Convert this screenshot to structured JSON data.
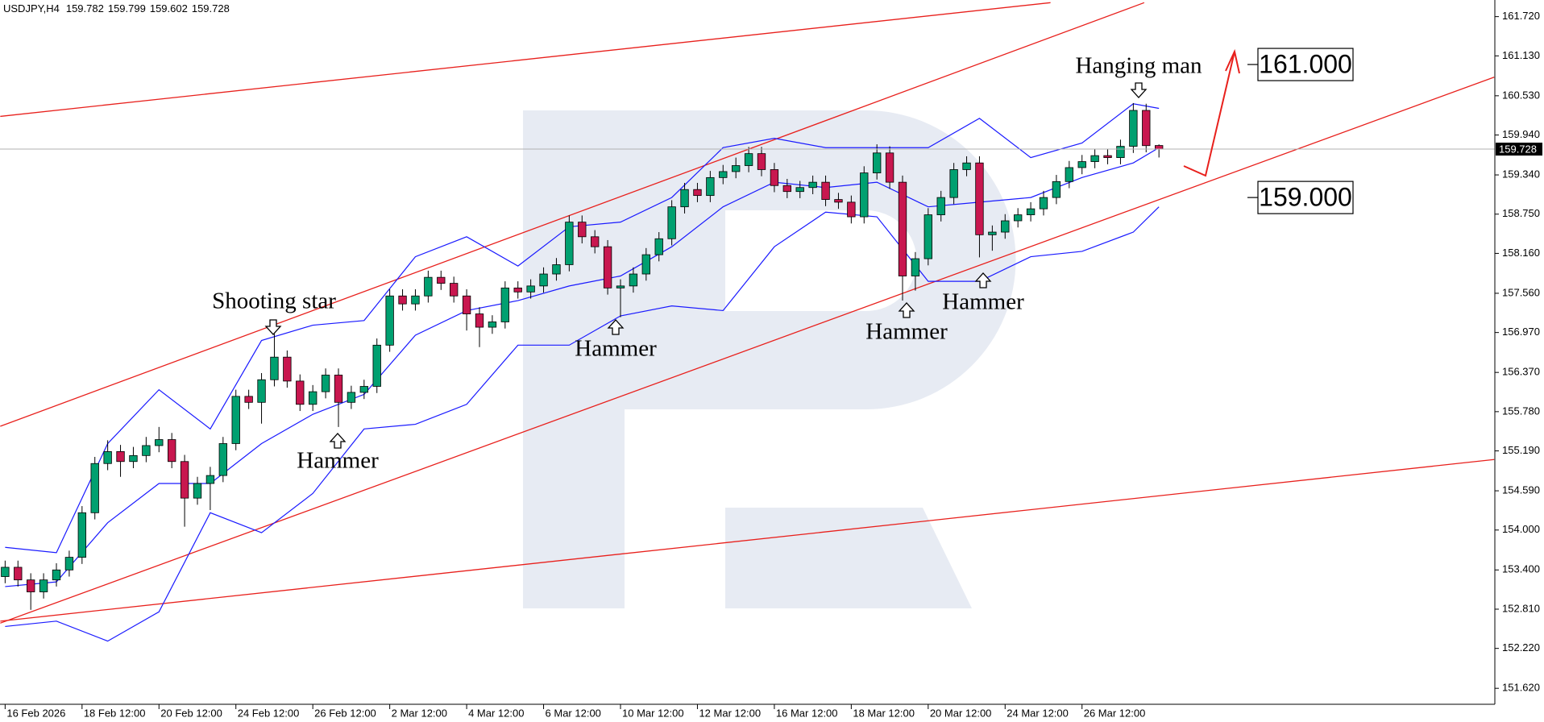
{
  "chart_data": {
    "type": "candlestick",
    "symbol": "USDJPY,H4",
    "xlim": [
      -0.4,
      116.2
    ],
    "ylim": [
      151.38,
      161.97
    ],
    "yticks": [
      {
        "value": 161.72,
        "label": "161.720"
      },
      {
        "value": 161.13,
        "label": "161.130"
      },
      {
        "value": 160.53,
        "label": "160.530"
      },
      {
        "value": 159.94,
        "label": "159.940"
      },
      {
        "value": 159.34,
        "label": "159.340"
      },
      {
        "value": 158.75,
        "label": "158.750"
      },
      {
        "value": 158.16,
        "label": "158.160"
      },
      {
        "value": 157.56,
        "label": "157.560"
      },
      {
        "value": 156.97,
        "label": "156.970"
      },
      {
        "value": 156.37,
        "label": "156.370"
      },
      {
        "value": 155.78,
        "label": "155.780"
      },
      {
        "value": 155.19,
        "label": "155.190"
      },
      {
        "value": 154.59,
        "label": "154.590"
      },
      {
        "value": 154,
        "label": "154.000"
      },
      {
        "value": 153.4,
        "label": "153.400"
      },
      {
        "value": 152.81,
        "label": "152.810"
      },
      {
        "value": 152.22,
        "label": "152.220"
      },
      {
        "value": 151.62,
        "label": "151.620"
      }
    ],
    "xticks": [
      {
        "value": 0,
        "label": "16 Feb 2026"
      },
      {
        "value": 6,
        "label": "18 Feb 12:00"
      },
      {
        "value": 12,
        "label": "20 Feb 12:00"
      },
      {
        "value": 18,
        "label": "24 Feb 12:00"
      },
      {
        "value": 24,
        "label": "26 Feb 12:00"
      },
      {
        "value": 30,
        "label": "2 Mar 12:00"
      },
      {
        "value": 36,
        "label": "4 Mar 12:00"
      },
      {
        "value": 42,
        "label": "6 Mar 12:00"
      },
      {
        "value": 48,
        "label": "10 Mar 12:00"
      },
      {
        "value": 54,
        "label": "12 Mar 12:00"
      },
      {
        "value": 60,
        "label": "16 Mar 12:00"
      },
      {
        "value": 66,
        "label": "18 Mar 12:00"
      },
      {
        "value": 72,
        "label": "20 Mar 12:00"
      },
      {
        "value": 78,
        "label": "24 Mar 12:00"
      },
      {
        "value": 84,
        "label": "26 Mar 12:00"
      }
    ],
    "up_color": "#00a070",
    "down_color": "#c8174f",
    "x": [
      0,
      1,
      2,
      3,
      4,
      5,
      6,
      7,
      8,
      9,
      10,
      11,
      12,
      13,
      14,
      15,
      16,
      17,
      18,
      19,
      20,
      21,
      22,
      23,
      24,
      25,
      26,
      27,
      28,
      29,
      30,
      31,
      32,
      33,
      34,
      35,
      36,
      37,
      38,
      39,
      40,
      41,
      42,
      43,
      44,
      45,
      46,
      47,
      48,
      49,
      50,
      51,
      52,
      53,
      54,
      55,
      56,
      57,
      58,
      59,
      60,
      61,
      62,
      63,
      64,
      65,
      66,
      67,
      68,
      69,
      70,
      71,
      72,
      73,
      74,
      75,
      76,
      77,
      78,
      79,
      80,
      81,
      82,
      83,
      84,
      85,
      86,
      87,
      88,
      89,
      90
    ],
    "open": [
      153.3,
      153.44,
      153.25,
      153.07,
      153.25,
      153.4,
      153.59,
      154.26,
      155.0,
      155.18,
      155.03,
      155.12,
      155.27,
      155.36,
      155.03,
      154.48,
      154.7,
      154.82,
      155.3,
      156.01,
      155.92,
      156.26,
      156.6,
      156.24,
      155.89,
      156.08,
      156.33,
      155.92,
      156.07,
      156.16,
      156.78,
      157.52,
      157.4,
      157.52,
      157.8,
      157.71,
      157.52,
      157.25,
      157.05,
      157.13,
      157.64,
      157.58,
      157.67,
      157.85,
      157.99,
      158.63,
      158.41,
      158.26,
      157.64,
      157.67,
      157.85,
      158.14,
      158.38,
      158.86,
      159.12,
      159.03,
      159.3,
      159.39,
      159.48,
      159.66,
      159.42,
      159.18,
      159.09,
      159.15,
      159.23,
      158.97,
      158.93,
      158.71,
      159.37,
      159.67,
      159.23,
      157.82,
      158.08,
      158.74,
      159.0,
      159.42,
      159.52,
      158.44,
      158.48,
      158.65,
      158.74,
      158.83,
      159.0,
      159.24,
      159.45,
      159.54,
      159.63,
      159.6,
      159.77,
      160.31,
      159.782
    ],
    "high": [
      153.54,
      153.54,
      153.35,
      153.35,
      153.5,
      153.69,
      154.36,
      155.1,
      155.35,
      155.28,
      155.25,
      155.4,
      155.55,
      155.46,
      155.13,
      154.8,
      154.95,
      155.4,
      156.11,
      156.11,
      156.36,
      156.95,
      156.7,
      156.34,
      156.18,
      156.43,
      156.43,
      156.17,
      156.26,
      156.88,
      157.62,
      157.62,
      157.62,
      157.9,
      157.9,
      157.81,
      157.62,
      157.35,
      157.23,
      157.74,
      157.74,
      157.77,
      157.95,
      158.09,
      158.73,
      158.73,
      158.51,
      158.36,
      157.77,
      157.95,
      158.24,
      158.48,
      158.96,
      159.22,
      159.22,
      159.4,
      159.49,
      159.6,
      159.76,
      159.76,
      159.52,
      159.28,
      159.25,
      159.33,
      159.33,
      159.07,
      159.03,
      159.47,
      159.8,
      159.77,
      159.33,
      158.18,
      158.84,
      159.1,
      159.52,
      159.62,
      159.62,
      158.58,
      158.75,
      158.84,
      158.93,
      159.1,
      159.34,
      159.55,
      159.64,
      159.73,
      159.73,
      159.87,
      160.42,
      160.41,
      159.799
    ],
    "low": [
      153.2,
      153.15,
      152.8,
      152.97,
      153.15,
      153.3,
      153.49,
      154.16,
      154.9,
      154.8,
      154.93,
      155.02,
      155.17,
      154.93,
      154.05,
      154.38,
      154.3,
      154.72,
      155.2,
      155.82,
      155.6,
      156.16,
      156.14,
      155.79,
      155.79,
      155.98,
      155.55,
      155.82,
      155.97,
      156.06,
      156.68,
      157.3,
      157.3,
      157.42,
      157.61,
      157.42,
      157.0,
      156.75,
      156.95,
      157.03,
      157.48,
      157.48,
      157.57,
      157.75,
      157.89,
      158.31,
      158.16,
      157.54,
      157.2,
      157.57,
      157.75,
      158.04,
      158.28,
      158.76,
      158.93,
      158.93,
      159.2,
      159.29,
      159.38,
      159.32,
      159.08,
      158.99,
      158.99,
      159.05,
      158.87,
      158.83,
      158.61,
      158.61,
      159.27,
      159.13,
      157.45,
      157.6,
      157.98,
      158.64,
      158.9,
      159.32,
      158.1,
      158.2,
      158.38,
      158.55,
      158.64,
      158.73,
      158.9,
      159.14,
      159.35,
      159.44,
      159.5,
      159.5,
      159.67,
      159.68,
      159.602
    ],
    "close": [
      153.44,
      153.25,
      153.07,
      153.25,
      153.4,
      153.59,
      154.26,
      155.0,
      155.18,
      155.03,
      155.12,
      155.27,
      155.36,
      155.03,
      154.48,
      154.7,
      154.82,
      155.3,
      156.01,
      155.92,
      156.26,
      156.6,
      156.24,
      155.89,
      156.08,
      156.33,
      155.92,
      156.07,
      156.16,
      156.78,
      157.52,
      157.4,
      157.52,
      157.8,
      157.71,
      157.52,
      157.25,
      157.05,
      157.13,
      157.64,
      157.58,
      157.67,
      157.85,
      157.99,
      158.63,
      158.41,
      158.26,
      157.64,
      157.67,
      157.85,
      158.14,
      158.38,
      158.86,
      159.12,
      159.03,
      159.3,
      159.39,
      159.48,
      159.66,
      159.42,
      159.18,
      159.09,
      159.15,
      159.23,
      158.97,
      158.93,
      158.71,
      159.37,
      159.67,
      159.23,
      157.82,
      158.08,
      158.74,
      159.0,
      159.42,
      159.52,
      158.44,
      158.48,
      158.65,
      158.74,
      158.83,
      159.0,
      159.24,
      159.45,
      159.54,
      159.63,
      159.6,
      159.77,
      160.31,
      159.78,
      159.728
    ],
    "bands": {
      "color": "#1a1aff",
      "x": [
        0,
        4,
        8,
        12,
        16,
        20,
        24,
        28,
        32,
        36,
        40,
        44,
        48,
        52,
        56,
        60,
        64,
        68,
        72,
        76,
        80,
        84,
        88,
        90
      ],
      "upper": [
        153.74,
        153.66,
        155.3,
        156.11,
        155.52,
        156.85,
        157.08,
        157.15,
        158.11,
        158.41,
        157.97,
        158.56,
        158.63,
        159.0,
        159.75,
        159.89,
        159.75,
        159.75,
        159.75,
        160.19,
        159.6,
        159.82,
        160.41,
        160.34
      ],
      "middle": [
        153.15,
        153.22,
        154.11,
        154.7,
        154.7,
        155.3,
        155.74,
        156.04,
        156.93,
        157.3,
        157.45,
        157.67,
        157.82,
        158.26,
        158.86,
        159.23,
        159.15,
        159.23,
        158.86,
        158.93,
        159.0,
        159.3,
        159.52,
        159.75
      ],
      "lower": [
        152.55,
        152.63,
        152.33,
        152.77,
        154.26,
        153.96,
        154.55,
        155.52,
        155.59,
        155.89,
        156.78,
        156.78,
        157.22,
        157.37,
        157.3,
        158.26,
        158.78,
        158.71,
        157.74,
        157.74,
        158.11,
        158.19,
        158.48,
        158.86
      ]
    },
    "trendline_color": "#e8201c",
    "trendlines": [
      {
        "x": [
          -0.38,
          81.54
        ],
        "y": [
          160.22,
          161.93
        ]
      },
      {
        "x": [
          -0.38,
          88.85
        ],
        "y": [
          155.56,
          161.93
        ]
      },
      {
        "x": [
          -0.38,
          116.15
        ],
        "y": [
          152.6,
          160.81
        ]
      },
      {
        "x": [
          -0.38,
          116.15
        ],
        "y": [
          152.63,
          155.06
        ]
      }
    ],
    "levels": [
      {
        "value": 161,
        "label": "161.000"
      },
      {
        "value": 159,
        "label": "159.000"
      }
    ],
    "annotations": [
      {
        "text": "Shooting star"
      },
      {
        "text": "Hammer"
      },
      {
        "text": "Hammer"
      },
      {
        "text": "Hammer"
      },
      {
        "text": "Hammer"
      },
      {
        "text": "Hanging man"
      }
    ]
  }
}
